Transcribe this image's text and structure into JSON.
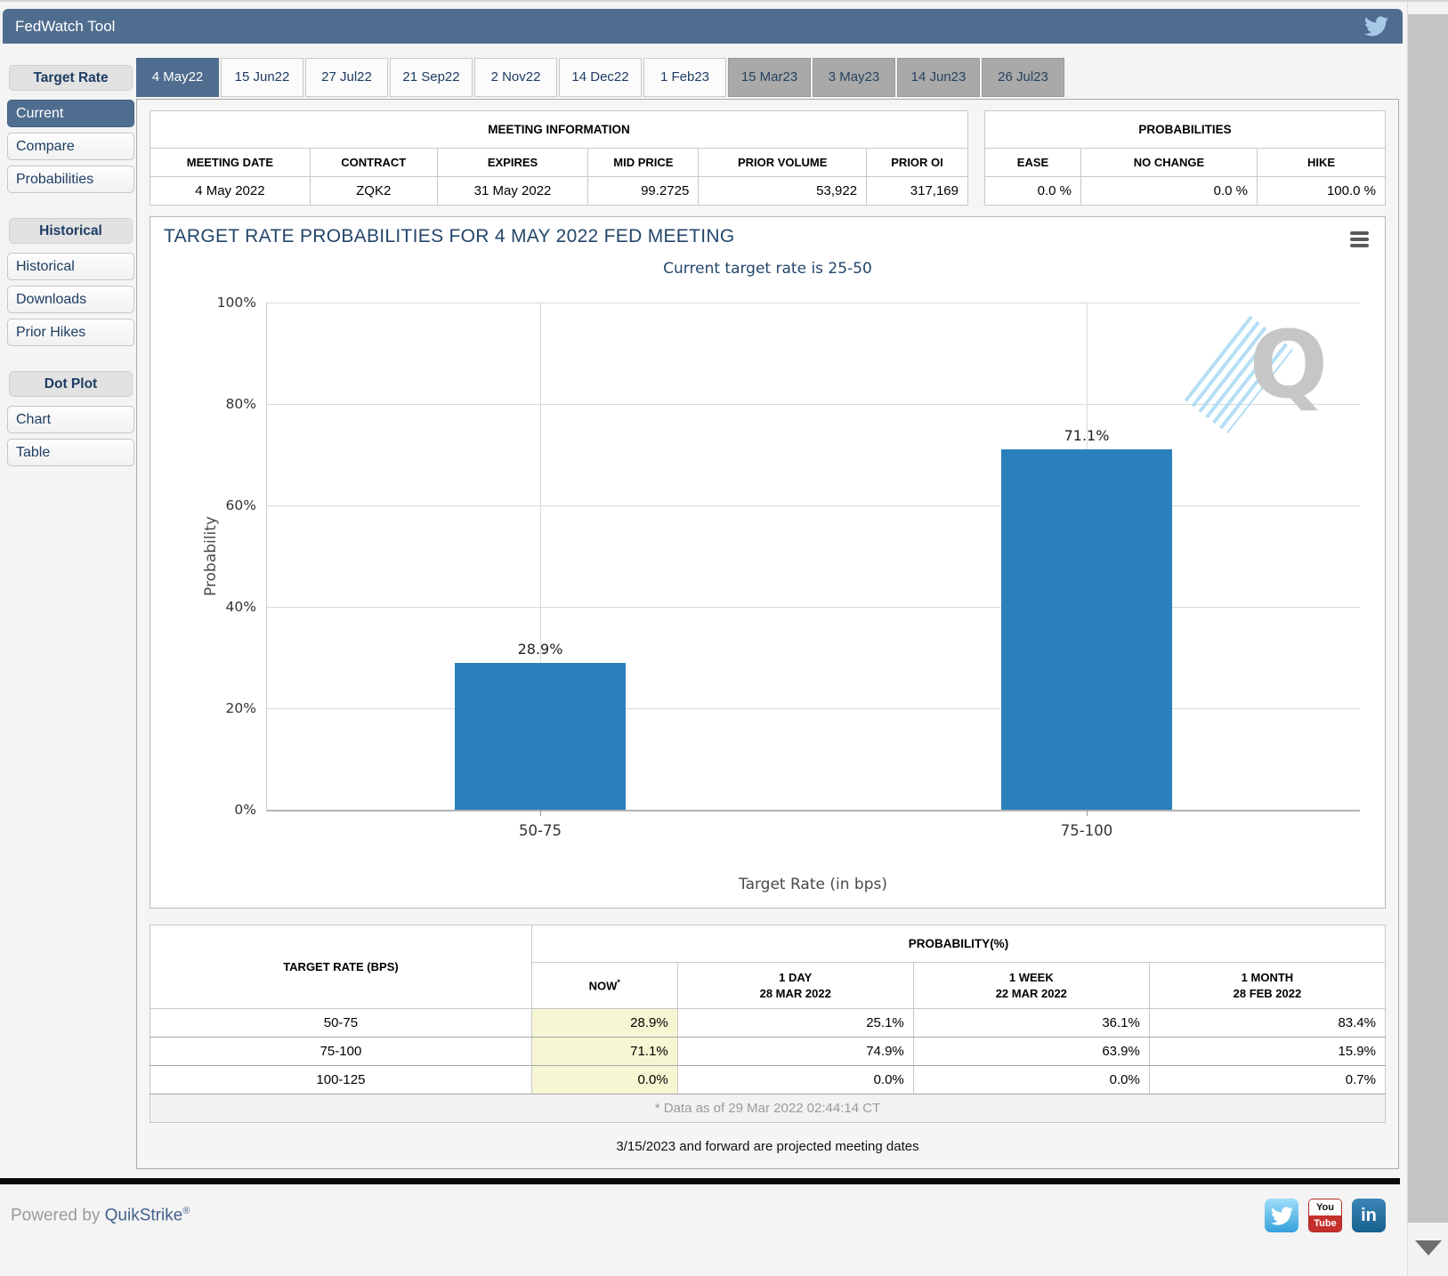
{
  "app": {
    "title": "FedWatch Tool"
  },
  "tabs": [
    "4 May22",
    "15 Jun22",
    "27 Jul22",
    "21 Sep22",
    "2 Nov22",
    "14 Dec22",
    "1 Feb23",
    "15 Mar23",
    "3 May23",
    "14 Jun23",
    "26 Jul23"
  ],
  "sidebar": {
    "sections": [
      {
        "header": "Target Rate",
        "items": [
          {
            "label": "Current",
            "selected": true
          },
          {
            "label": "Compare"
          },
          {
            "label": "Probabilities"
          }
        ]
      },
      {
        "header": "Historical",
        "items": [
          {
            "label": "Historical"
          },
          {
            "label": "Downloads"
          },
          {
            "label": "Prior Hikes"
          }
        ]
      },
      {
        "header": "Dot Plot",
        "items": [
          {
            "label": "Chart"
          },
          {
            "label": "Table"
          }
        ]
      }
    ]
  },
  "meeting_info": {
    "title": "MEETING INFORMATION",
    "headers": [
      "MEETING DATE",
      "CONTRACT",
      "EXPIRES",
      "MID PRICE",
      "PRIOR VOLUME",
      "PRIOR OI"
    ],
    "values": [
      "4 May 2022",
      "ZQK2",
      "31 May 2022",
      "99.2725",
      "53,922",
      "317,169"
    ]
  },
  "probabilities": {
    "title": "PROBABILITIES",
    "headers": [
      "EASE",
      "NO CHANGE",
      "HIKE"
    ],
    "values": [
      "0.0 %",
      "0.0 %",
      "100.0 %"
    ]
  },
  "chart_data": {
    "type": "bar",
    "title": "TARGET RATE PROBABILITIES FOR 4 MAY 2022 FED MEETING",
    "subtitle": "Current target rate is 25-50",
    "categories": [
      "50-75",
      "75-100"
    ],
    "values": [
      28.9,
      71.1
    ],
    "value_labels": [
      "28.9%",
      "71.1%"
    ],
    "xlabel": "Target Rate (in bps)",
    "ylabel": "Probability",
    "ylim": [
      0,
      100
    ],
    "yticks": [
      "100%",
      "80%",
      "60%",
      "40%",
      "20%",
      "0%"
    ],
    "grid": true,
    "bar_color": "#2a80ba",
    "watermark": "Q"
  },
  "prob_table": {
    "col1_header": "TARGET RATE (BPS)",
    "group_header": "PROBABILITY(%)",
    "now_label": "NOW",
    "now_sup": "*",
    "cols": [
      {
        "line1": "1 DAY",
        "line2": "28 MAR 2022"
      },
      {
        "line1": "1 WEEK",
        "line2": "22 MAR 2022"
      },
      {
        "line1": "1 MONTH",
        "line2": "28 FEB 2022"
      }
    ],
    "rows": [
      {
        "range": "50-75",
        "now": "28.9%",
        "day": "25.1%",
        "week": "36.1%",
        "month": "83.4%"
      },
      {
        "range": "75-100",
        "now": "71.1%",
        "day": "74.9%",
        "week": "63.9%",
        "month": "15.9%"
      },
      {
        "range": "100-125",
        "now": "0.0%",
        "day": "0.0%",
        "week": "0.0%",
        "month": "0.7%"
      }
    ],
    "footnote": "* Data as of 29 Mar 2022 02:44:14 CT"
  },
  "notes": {
    "projected_note": "3/15/2023 and forward are projected meeting dates"
  },
  "footer": {
    "powered_by": "Powered by ",
    "brand": "QuikStrike",
    "trademark": "®",
    "social": {
      "youtube_top": "You",
      "youtube_bottom": "Tube",
      "linkedin": "in"
    }
  },
  "colors": {
    "header": "#4f6d8e",
    "bar": "#2a80ba",
    "now_highlight": "#f6f6d2"
  }
}
